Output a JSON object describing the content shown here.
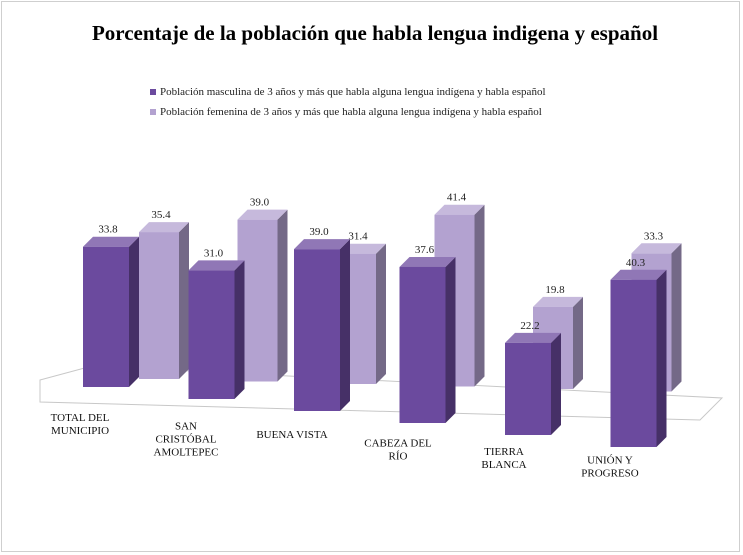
{
  "chart_data": {
    "type": "bar",
    "title": "Porcentaje de la población que habla lengua indigena y español",
    "categories": [
      [
        "TOTAL DEL",
        "MUNICIPIO"
      ],
      [
        "SAN",
        "CRISTÓBAL",
        "AMOLTEPEC"
      ],
      [
        "BUENA VISTA"
      ],
      [
        "CABEZA DEL",
        "RÍO"
      ],
      [
        "TIERRA",
        "BLANCA"
      ],
      [
        "UNIÓN Y",
        "PROGRESO"
      ]
    ],
    "series": [
      {
        "name": "Población masculina de 3 años y más que habla alguna lengua indígena y habla español",
        "color": "#6b4a9e",
        "values": [
          33.8,
          31.0,
          39.0,
          37.6,
          22.2,
          40.3
        ],
        "labels": [
          "33.8",
          "31.0",
          "39.0",
          "37.6",
          "22.2",
          "40.3"
        ]
      },
      {
        "name": "Población femenina de 3 años y más que habla alguna lengua indígena y habla español",
        "color": "#b3a2d0",
        "values": [
          35.4,
          39.0,
          31.4,
          41.4,
          19.8,
          33.3
        ],
        "labels": [
          "35.4",
          "39.0",
          "31.4",
          "41.4",
          "19.8",
          "33.3"
        ]
      }
    ],
    "legend_position": "top-center",
    "grid": false
  }
}
